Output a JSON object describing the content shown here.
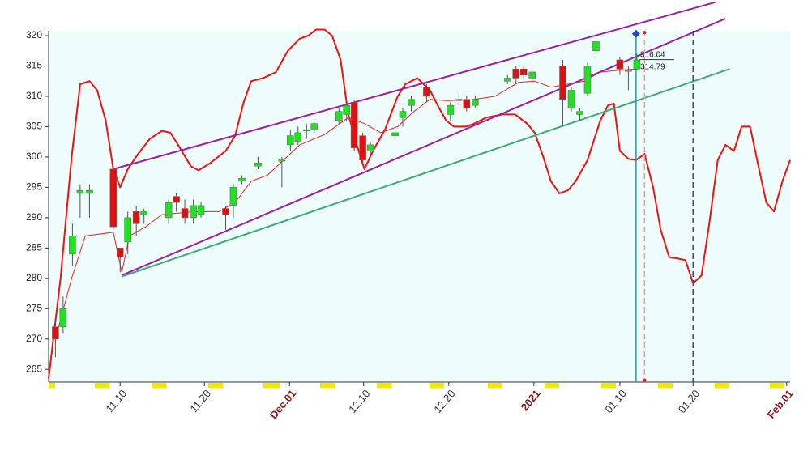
{
  "chart_data": {
    "type": "candlestick",
    "xlim": [
      0,
      87.1
    ],
    "ylim": [
      262.9,
      320.8
    ],
    "yticks": [
      265,
      270,
      275,
      280,
      285,
      290,
      295,
      300,
      305,
      310,
      315,
      320
    ],
    "xticks": [
      {
        "value": 8.4,
        "label": "11.10"
      },
      {
        "value": 18.3,
        "label": "11.20"
      },
      {
        "value": 28.3,
        "label": "Dec.01"
      },
      {
        "value": 37,
        "label": "12.10"
      },
      {
        "value": 47,
        "label": "12.20"
      },
      {
        "value": 57,
        "label": "2021"
      },
      {
        "value": 67.1,
        "label": "01.10"
      },
      {
        "value": 75.7,
        "label": "01.20"
      },
      {
        "value": 86.7,
        "label": "Feb.01"
      }
    ],
    "xtick_highlight": [
      2,
      5,
      8
    ],
    "up_color": "#22e022",
    "down_color": "#dd1111",
    "x": [
      0.8,
      1.7,
      2.8,
      3.7,
      4.8,
      7.6,
      8.4,
      9.3,
      10.3,
      11.2,
      14.1,
      15.0,
      16.0,
      17.0,
      17.9,
      20.8,
      21.7,
      22.7,
      24.6,
      27.4,
      28.4,
      29.3,
      30.3,
      31.2,
      34.1,
      35.0,
      35.9,
      36.9,
      37.8,
      40.7,
      41.6,
      42.6,
      44.4,
      47.2,
      48.2,
      49.1,
      50.1,
      53.9,
      54.9,
      55.8,
      56.8,
      60.4,
      61.4,
      62.4,
      63.3,
      64.3,
      67.1,
      68.1,
      69.1
    ],
    "open": [
      272,
      272,
      284,
      294,
      294,
      298,
      285,
      286,
      291,
      290.5,
      290,
      293.5,
      291.5,
      290,
      290.5,
      291.5,
      292,
      296,
      298.5,
      299.5,
      302,
      302.5,
      304.5,
      304.5,
      306,
      307,
      309,
      303.5,
      301,
      303.5,
      306.5,
      308.5,
      311.5,
      307,
      309.5,
      309.5,
      308.5,
      312.5,
      314.5,
      314.5,
      313,
      315,
      308,
      307,
      310.5,
      317.5,
      316,
      314.3,
      314.5
    ],
    "high": [
      273,
      277,
      289,
      295.5,
      295.5,
      298.5,
      285,
      291,
      292,
      291.5,
      293,
      294,
      293,
      293,
      292.5,
      292,
      295.5,
      297,
      300,
      300,
      304.5,
      305,
      305.5,
      306,
      308,
      309,
      309.5,
      304,
      302.5,
      304.5,
      308,
      310,
      312,
      309,
      310.5,
      310,
      310,
      313.5,
      315,
      315,
      314.5,
      316,
      311.5,
      308,
      315.5,
      319.5,
      316.5,
      315,
      317
    ],
    "low": [
      267,
      271,
      282,
      290,
      290,
      288,
      281,
      284,
      287,
      289,
      289,
      291,
      289,
      289,
      290,
      288,
      290,
      295.5,
      298,
      295,
      301,
      302,
      303,
      304,
      305.5,
      306,
      301,
      299,
      300,
      303,
      305,
      307.5,
      309,
      306,
      308.5,
      307.5,
      308,
      312,
      312,
      313,
      312,
      305,
      307.5,
      306,
      310,
      316.5,
      313.5,
      311,
      314.3
    ],
    "close": [
      270,
      275,
      287,
      294.5,
      294.5,
      288.5,
      283.5,
      290,
      289,
      291,
      292.5,
      292.5,
      290,
      292,
      292,
      290.5,
      295,
      296.5,
      299,
      299.5,
      303.5,
      304,
      304.5,
      305.5,
      307.5,
      308.5,
      301.5,
      299.5,
      302,
      304,
      307.5,
      309.5,
      310,
      308.5,
      309.5,
      308,
      309.5,
      313,
      313,
      313.5,
      314,
      309.5,
      311,
      307.5,
      315,
      319,
      314.5,
      314.3,
      316
    ],
    "overlays": [
      {
        "color": "#ee1111",
        "weight": "heavy",
        "x": [
          0,
          1.4,
          2.7,
          3.7,
          4.8,
          5.7,
          6.7,
          7.6,
          8.4,
          9.3,
          10.5,
          11.9,
          13.3,
          14.3,
          15.2,
          16.7,
          17.6,
          19.0,
          20.8,
          21.9,
          22.9,
          23.8,
          25.2,
          26.7,
          28.1,
          29.5,
          30.5,
          31.4,
          32.4,
          33.3,
          34.3,
          35.2,
          36.2,
          37.1,
          38.1,
          39.5,
          41.0,
          41.9,
          43.3,
          44.8,
          45.7,
          46.7,
          47.6,
          49.0,
          50.0,
          51.4,
          53.3,
          54.8,
          56.2,
          57.1,
          58.1,
          59.0,
          60.0,
          61.0,
          61.9,
          63.3,
          64.8,
          65.7,
          66.4,
          67.1,
          68.1,
          69.0,
          70.0,
          71.0,
          71.9,
          72.9,
          73.8,
          74.8,
          75.7,
          76.7,
          77.6,
          78.6,
          79.5,
          80.5,
          81.4,
          82.4,
          83.3,
          84.3,
          85.2,
          86.2,
          87.1
        ],
        "values": [
          263.5,
          280,
          300,
          312,
          312.5,
          311,
          306,
          298,
          295,
          298,
          300.5,
          303,
          304.3,
          304,
          302,
          298.5,
          297.8,
          299,
          301,
          303.5,
          309,
          312.5,
          313,
          314,
          317.5,
          319.5,
          320,
          321,
          321,
          320,
          316,
          307,
          302,
          298,
          301,
          304.5,
          310,
          312,
          313,
          311,
          308.5,
          306,
          305,
          305,
          305.5,
          306.5,
          307,
          307,
          305.5,
          304,
          300,
          296,
          294,
          294.5,
          296,
          299.5,
          306,
          308.5,
          308.8,
          301,
          299.7,
          299.5,
          300.5,
          295,
          288,
          283.5,
          283.3,
          283,
          279.2,
          280.5,
          289,
          299.5,
          302,
          301,
          305,
          305,
          299,
          292.5,
          291,
          296,
          299.5
        ]
      },
      {
        "color": "#ee2222",
        "weight": "light",
        "x": [
          0.8,
          2.7,
          4.3,
          7.6,
          8.6,
          9.5,
          11.4,
          13.3,
          17.1,
          20.0,
          21.9,
          23.8,
          25.7,
          27.6,
          29.5,
          32.4,
          35.2,
          37.1,
          39.0,
          41.0,
          42.9,
          44.8,
          46.7,
          49.5,
          52.4,
          55.2,
          57.1,
          59.0,
          61.0,
          62.9,
          64.8,
          67.1,
          69.0
        ],
        "values": [
          270,
          280,
          287,
          287.6,
          281,
          287,
          288.5,
          290.5,
          291,
          291,
          292.5,
          296,
          297,
          299.5,
          302,
          303.7,
          306.5,
          305.5,
          304,
          305,
          307.5,
          309.5,
          309.3,
          309.4,
          310,
          312.3,
          312.5,
          311.5,
          312,
          312.5,
          314,
          314.3,
          314.5
        ]
      },
      {
        "color": "#a01aa8",
        "weight": "heavy",
        "x": [
          7.6,
          78.3
        ],
        "values": [
          298,
          325.5
        ]
      },
      {
        "color": "#a01aa8",
        "weight": "heavy",
        "x": [
          8.6,
          79.5
        ],
        "values": [
          280.5,
          322.8
        ]
      },
      {
        "color": "#3aae72",
        "weight": "heavy",
        "x": [
          8.6,
          80.0
        ],
        "values": [
          280.3,
          314.5
        ]
      }
    ],
    "vlines": [
      {
        "x": 69.0,
        "color": "#2a9a9a",
        "style": "solid"
      },
      {
        "x": 70.0,
        "color": "#e0a0a0",
        "style": "dashed"
      },
      {
        "x": 75.7,
        "color": "#3a3ac8",
        "style": "dashed"
      }
    ],
    "price_labels": [
      {
        "label": "316.04",
        "value": 316.04,
        "x": 69.3
      },
      {
        "label": "314.79",
        "value": 314.79,
        "x": 69.3
      }
    ],
    "markers": [
      {
        "x": 69.0,
        "y": 320.3,
        "color": "#2244cc",
        "shape": "diamond"
      },
      {
        "x": 70.0,
        "y": 320.5,
        "color": "#dd2222",
        "shape": "dot"
      },
      {
        "x": 70.0,
        "y": 263.2,
        "color": "#dd2222",
        "shape": "dot"
      }
    ]
  }
}
